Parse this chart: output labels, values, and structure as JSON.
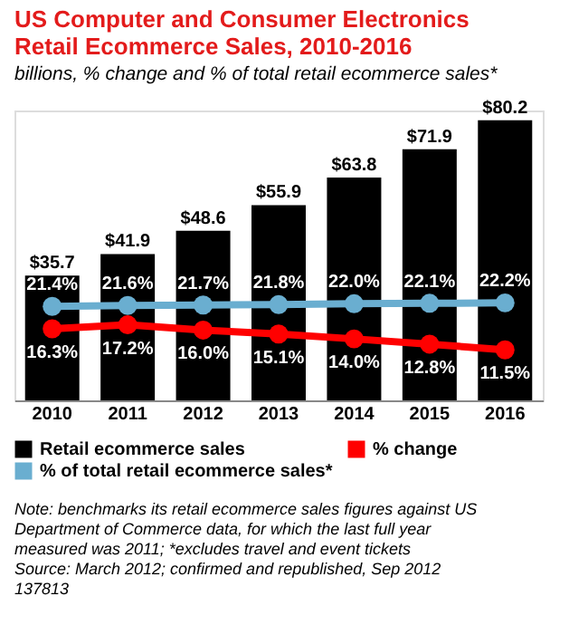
{
  "chart_data": {
    "type": "bar",
    "title": "US Computer and Consumer Electronics Retail Ecommerce Sales, 2010-2016",
    "subtitle": "billions, % change and % of total retail ecommerce sales*",
    "categories": [
      "2010",
      "2011",
      "2012",
      "2013",
      "2014",
      "2015",
      "2016"
    ],
    "series": [
      {
        "name": "Retail ecommerce sales",
        "color": "#000000",
        "values": [
          35.7,
          41.9,
          48.6,
          55.9,
          63.8,
          71.9,
          80.2
        ],
        "value_labels": [
          "$35.7",
          "$41.9",
          "$48.6",
          "$55.9",
          "$63.8",
          "$71.9",
          "$80.2"
        ]
      },
      {
        "name": "% of total retail ecommerce sales*",
        "type": "line",
        "axis": "y2",
        "color": "#6aaed0",
        "values": [
          21.4,
          21.6,
          21.7,
          21.8,
          22.0,
          22.1,
          22.2
        ],
        "value_labels": [
          "21.4%",
          "21.6%",
          "21.7%",
          "21.8%",
          "22.0%",
          "22.1%",
          "22.2%"
        ]
      },
      {
        "name": "% change",
        "type": "line",
        "axis": "y2",
        "color": "#ff0000",
        "values": [
          16.3,
          17.2,
          16.0,
          15.1,
          14.0,
          12.8,
          11.5
        ],
        "value_labels": [
          "16.3%",
          "17.2%",
          "16.0%",
          "15.1%",
          "14.0%",
          "12.8%",
          "11.5%"
        ]
      }
    ],
    "ylim": [
      0,
      83
    ],
    "y2lim": [
      0,
      66
    ],
    "tick_labels": "x",
    "marker": "circle",
    "legend": "bottom",
    "grid": false,
    "annotations": [
      "Note: benchmarks its retail ecommerce sales figures against US Department of Commerce data, for which the last full year measured was 2011; *excludes travel and event tickets",
      "Source: March 2012; confirmed and republished, Sep 2012",
      "137813"
    ]
  }
}
